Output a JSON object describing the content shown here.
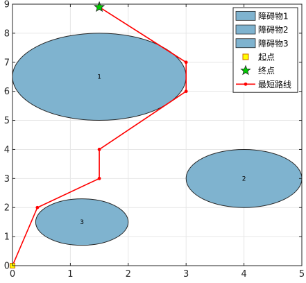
{
  "chart_data": {
    "type": "scatter",
    "title": "",
    "xlabel": "",
    "ylabel": "",
    "xlim": [
      0,
      5
    ],
    "ylim": [
      0,
      9
    ],
    "x_ticks": [
      0,
      1,
      2,
      3,
      4,
      5
    ],
    "y_ticks": [
      0,
      1,
      2,
      3,
      4,
      5,
      6,
      7,
      8,
      9
    ],
    "grid": true,
    "legend_position": "top-right",
    "obstacles": [
      {
        "name": "障碍物1",
        "label": "1",
        "center": [
          1.5,
          6.5
        ],
        "radii": [
          1.5,
          1.5
        ],
        "color": "#7FB3CF"
      },
      {
        "name": "障碍物2",
        "label": "2",
        "center": [
          4.0,
          3.0
        ],
        "radii": [
          1.0,
          1.0
        ],
        "color": "#7FB3CF"
      },
      {
        "name": "障碍物3",
        "label": "3",
        "center": [
          1.2,
          1.5
        ],
        "radii": [
          0.8,
          0.8
        ],
        "color": "#7FB3CF"
      }
    ],
    "start": {
      "name": "起点",
      "x": 0,
      "y": 0,
      "color": "#FFFF00"
    },
    "goal": {
      "name": "终点",
      "x": 1.5,
      "y": 8.9,
      "color": "#00CC00"
    },
    "path": {
      "name": "最短路线",
      "color": "#FF0000",
      "x": [
        0,
        0.43,
        1.5,
        1.5,
        3.0,
        3.0,
        1.5
      ],
      "y": [
        0,
        2.0,
        3.0,
        4.0,
        6.0,
        7.0,
        8.9
      ]
    }
  }
}
